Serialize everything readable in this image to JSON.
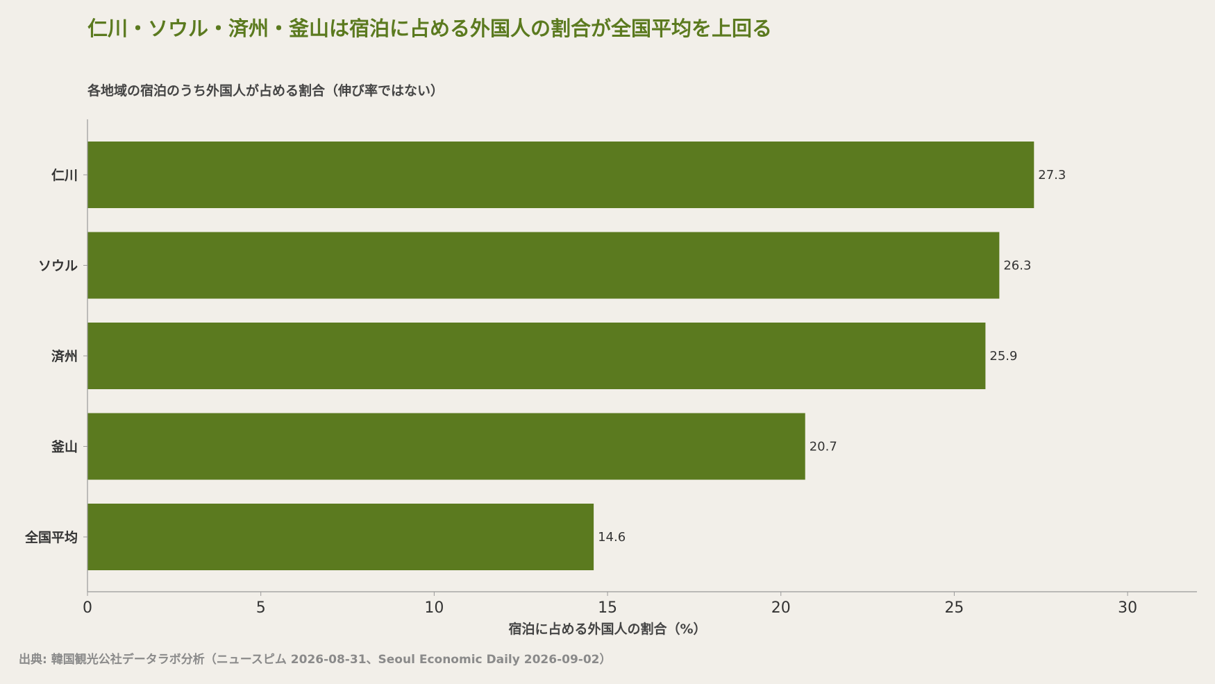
{
  "title": "仁川・ソウル・済州・釜山は宿泊に占める外国人の割合が全国平均を上回る",
  "subtitle": "各地域の宿泊のうち外国人が占める割合（伸び率ではない）",
  "source": "出典: 韓国観光公社データラボ分析（ニュースピム 2026-08-31、Seoul Economic Daily 2026-09-02）",
  "colors": {
    "background": "#f2efe9",
    "bar": "#5b7a1f",
    "title": "#5b7a1f",
    "axis": "#999999"
  },
  "chart_data": {
    "type": "bar",
    "orientation": "horizontal",
    "categories": [
      "仁川",
      "ソウル",
      "済州",
      "釜山",
      "全国平均"
    ],
    "values": [
      27.3,
      26.3,
      25.9,
      20.7,
      14.6
    ],
    "value_labels": [
      "27.3",
      "26.3",
      "25.9",
      "20.7",
      "14.6"
    ],
    "xlabel": "宿泊に占める外国人の割合（%）",
    "ylabel": "",
    "xlim": [
      0,
      32
    ],
    "xticks": [
      0,
      5,
      10,
      15,
      20,
      25,
      30
    ],
    "grid": false,
    "legend": "none"
  }
}
